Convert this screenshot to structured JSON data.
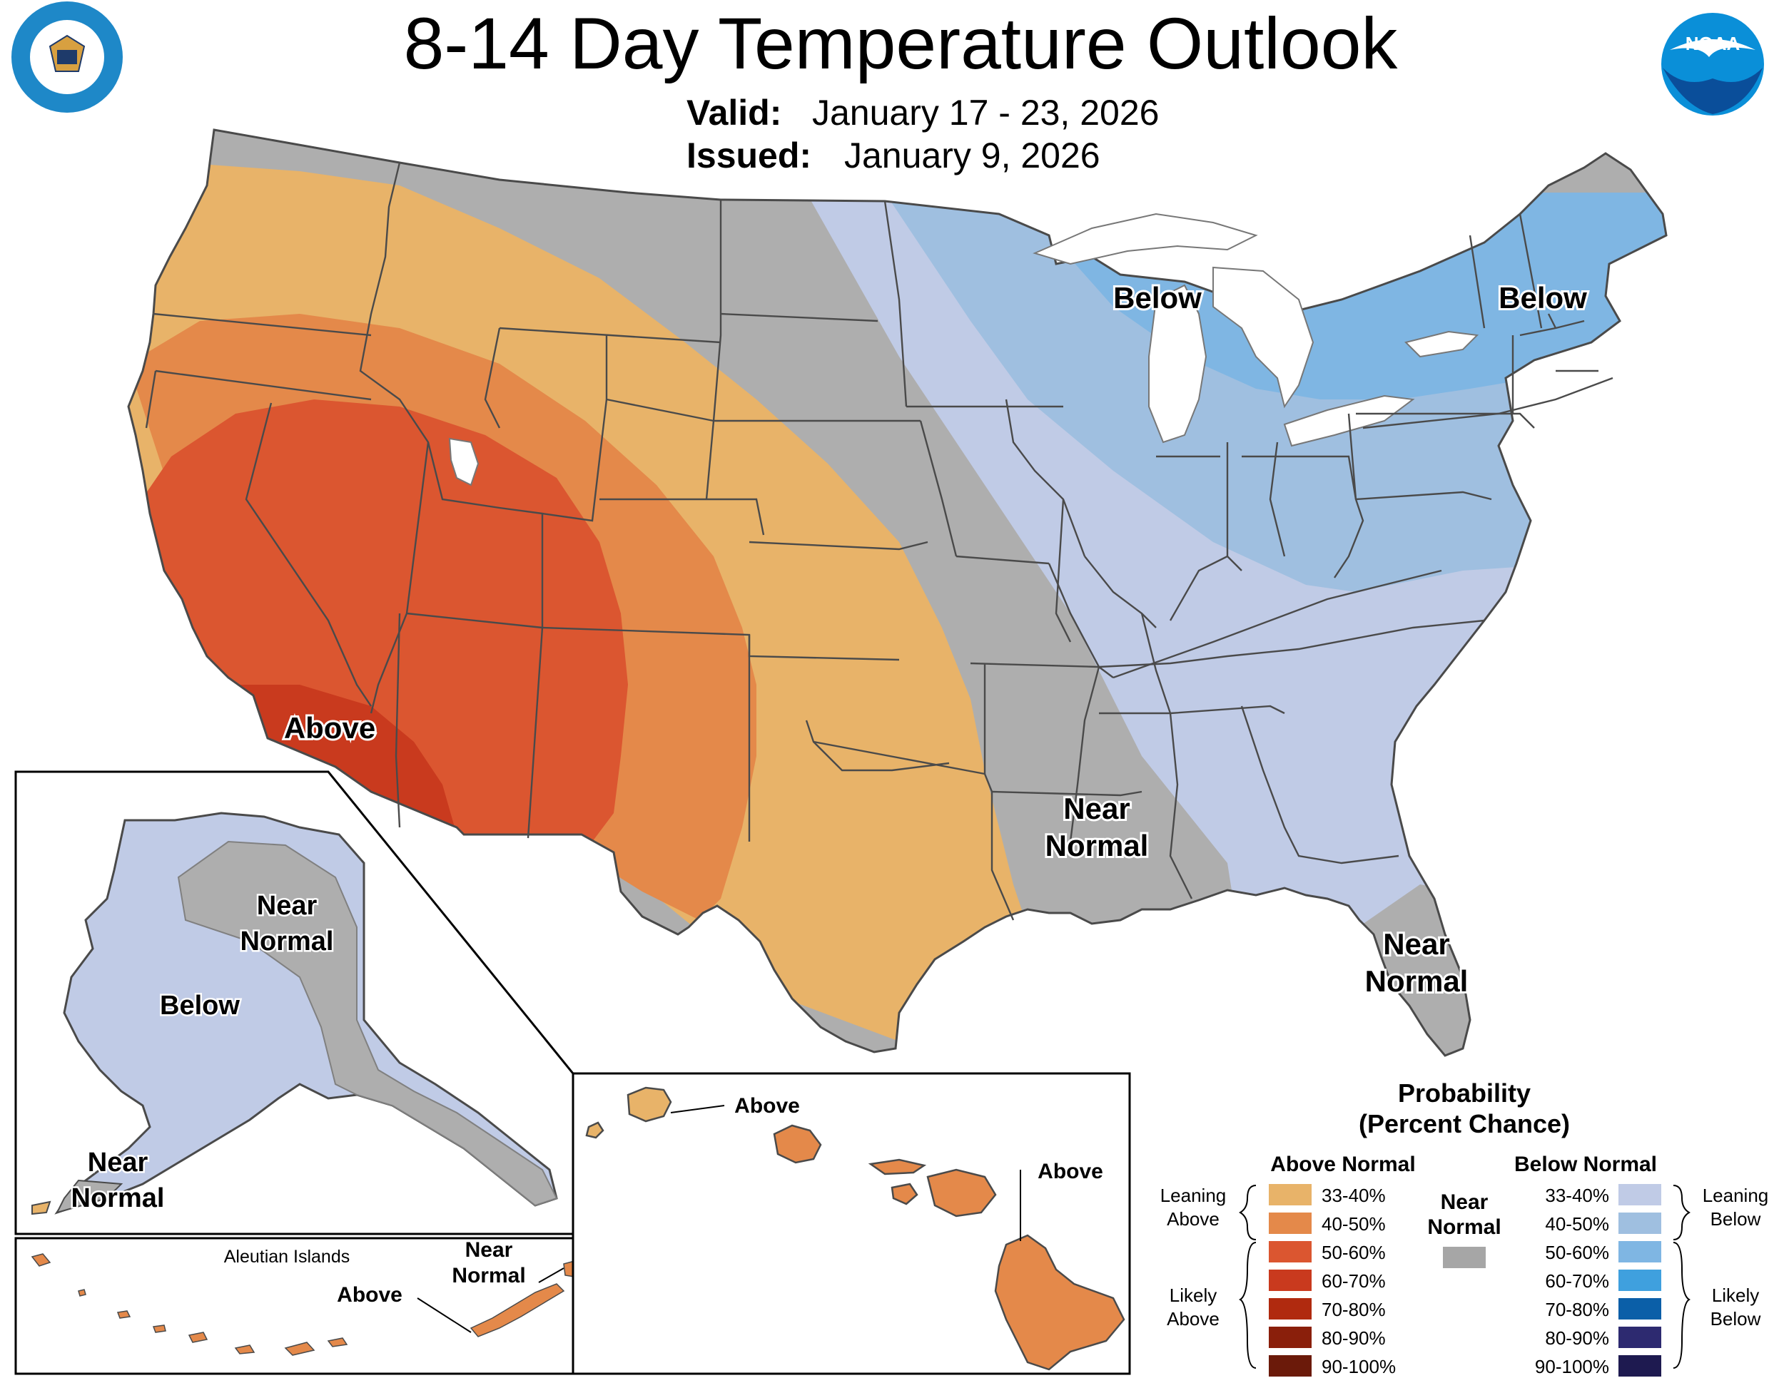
{
  "header": {
    "title": "8-14 Day Temperature Outlook",
    "valid_label": "Valid:",
    "valid_value": "January 17 - 23, 2026",
    "issued_label": "Issued:",
    "issued_value": "January 9, 2026"
  },
  "logos": {
    "commerce_seal": "DEPARTMENT OF COMMERCE · UNITED STATES OF AMERICA",
    "noaa": "NOAA"
  },
  "map_labels": {
    "southwest": "Above",
    "great_lakes": "Below",
    "northeast": "Below",
    "south_line1": "Near",
    "south_line2": "Normal",
    "florida_line1": "Near",
    "florida_line2": "Normal"
  },
  "alaska_labels": {
    "interior_line1": "Near",
    "interior_line2": "Normal",
    "west": "Below",
    "southwest_line1": "Near",
    "southwest_line2": "Normal"
  },
  "aleutian_labels": {
    "title": "Aleutian Islands",
    "near_line1": "Near",
    "near_line2": "Normal",
    "above": "Above"
  },
  "hawaii_labels": {
    "kauai": "Above",
    "big_island": "Above"
  },
  "legend": {
    "title_line1": "Probability",
    "title_line2": "(Percent Chance)",
    "above_header": "Above Normal",
    "below_header": "Below Normal",
    "near_line1": "Near",
    "near_line2": "Normal",
    "leaning_above_1": "Leaning",
    "leaning_above_2": "Above",
    "likely_above_1": "Likely",
    "likely_above_2": "Above",
    "leaning_below_1": "Leaning",
    "leaning_below_2": "Below",
    "likely_below_1": "Likely",
    "likely_below_2": "Below",
    "above_bins": [
      "33-40%",
      "40-50%",
      "50-60%",
      "60-70%",
      "70-80%",
      "80-90%",
      "90-100%"
    ],
    "below_bins": [
      "33-40%",
      "40-50%",
      "50-60%",
      "60-70%",
      "70-80%",
      "80-90%",
      "90-100%"
    ],
    "above_colors": [
      "#E8B369",
      "#E4894A",
      "#DB5630",
      "#C93A1E",
      "#B02A0F",
      "#8A1F0B",
      "#6B1A0A"
    ],
    "below_colors": [
      "#C0CBE6",
      "#9FBFE0",
      "#7FB6E3",
      "#3FA0DE",
      "#0B5FA8",
      "#2D2A70",
      "#1E1A50"
    ],
    "near_color": "#A6A6A6"
  },
  "colors": {
    "near_normal": "#AEAEAE",
    "state_border": "#4A4A4A",
    "water": "#FFFFFF"
  }
}
